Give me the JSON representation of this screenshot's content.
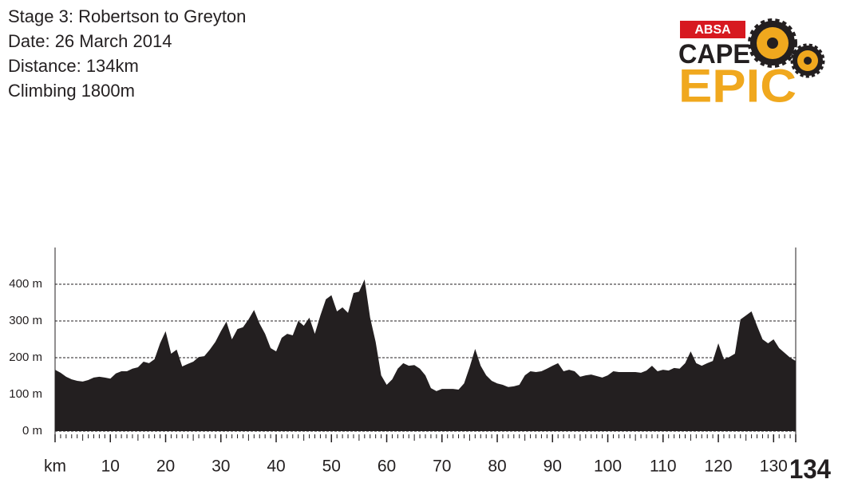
{
  "header": {
    "lines": [
      "Stage 3: Robertson to Greyton",
      "Date: 26 March 2014",
      "Distance: 134km",
      "Climbing 1800m"
    ]
  },
  "logo": {
    "bank": "ABSA",
    "top": "CAPE",
    "bottom": "EPIC"
  },
  "chart_data": {
    "type": "area",
    "color": "#231f20",
    "x": [
      0,
      1,
      2,
      3,
      4,
      5,
      6,
      7,
      8,
      9,
      10,
      11,
      12,
      13,
      14,
      15,
      16,
      17,
      18,
      19,
      20,
      21,
      22,
      23,
      24,
      25,
      26,
      27,
      28,
      29,
      30,
      31,
      32,
      33,
      34,
      35,
      36,
      37,
      38,
      39,
      40,
      41,
      42,
      43,
      44,
      45,
      46,
      47,
      48,
      49,
      50,
      51,
      52,
      53,
      54,
      55,
      56,
      57,
      58,
      59,
      60,
      61,
      62,
      63,
      64,
      65,
      66,
      67,
      68,
      69,
      70,
      71,
      72,
      73,
      74,
      75,
      76,
      77,
      78,
      79,
      80,
      81,
      82,
      83,
      84,
      85,
      86,
      87,
      88,
      89,
      90,
      91,
      92,
      93,
      94,
      95,
      96,
      97,
      98,
      99,
      100,
      101,
      102,
      103,
      104,
      105,
      106,
      107,
      108,
      109,
      110,
      111,
      112,
      113,
      114,
      115,
      116,
      117,
      118,
      119,
      120,
      121,
      122,
      123,
      124,
      125,
      126,
      127,
      128,
      129,
      130,
      131,
      132,
      133,
      134
    ],
    "values": [
      167,
      159,
      148,
      141,
      137,
      135,
      139,
      146,
      148,
      146,
      143,
      157,
      163,
      163,
      170,
      174,
      189,
      185,
      196,
      239,
      272,
      211,
      222,
      176,
      183,
      189,
      202,
      204,
      222,
      243,
      272,
      298,
      250,
      278,
      283,
      304,
      330,
      293,
      265,
      226,
      217,
      254,
      265,
      261,
      300,
      287,
      309,
      265,
      315,
      359,
      370,
      326,
      337,
      322,
      376,
      380,
      413,
      309,
      243,
      152,
      126,
      141,
      170,
      185,
      178,
      180,
      170,
      152,
      117,
      109,
      115,
      115,
      115,
      113,
      130,
      174,
      224,
      178,
      152,
      137,
      130,
      126,
      120,
      122,
      126,
      152,
      163,
      161,
      163,
      170,
      178,
      185,
      163,
      167,
      163,
      148,
      152,
      154,
      150,
      146,
      152,
      163,
      161,
      161,
      161,
      161,
      159,
      165,
      178,
      163,
      167,
      165,
      172,
      170,
      185,
      217,
      185,
      178,
      185,
      191,
      239,
      196,
      202,
      211,
      304,
      315,
      326,
      287,
      250,
      239,
      250,
      226,
      213,
      200,
      191
    ],
    "xlim": [
      0,
      134
    ],
    "ylim": [
      0,
      500
    ],
    "xticks": [
      {
        "value": 0,
        "label": "km"
      },
      10,
      20,
      30,
      40,
      50,
      60,
      70,
      80,
      90,
      100,
      110,
      120,
      130,
      134
    ],
    "xminorticks": [
      0,
      1,
      2,
      3,
      4,
      5,
      6,
      7,
      8,
      9,
      10,
      11,
      12,
      13,
      14,
      15,
      16,
      17,
      18,
      19,
      20,
      21,
      22,
      23,
      24,
      25,
      26,
      27,
      28,
      29,
      30,
      31,
      32,
      33,
      34,
      35,
      36,
      37,
      38,
      39,
      40,
      41,
      42,
      43,
      44,
      45,
      46,
      47,
      48,
      49,
      50,
      51,
      52,
      53,
      54,
      55,
      56,
      57,
      58,
      59,
      60,
      61,
      62,
      63,
      64,
      65,
      66,
      67,
      68,
      69,
      70,
      71,
      72,
      73,
      74,
      75,
      76,
      77,
      78,
      79,
      80,
      81,
      82,
      83,
      84,
      85,
      86,
      87,
      88,
      89,
      90,
      91,
      92,
      93,
      94,
      95,
      96,
      97,
      98,
      99,
      100,
      101,
      102,
      103,
      104,
      105,
      106,
      107,
      108,
      109,
      110,
      111,
      112,
      113,
      114,
      115,
      116,
      117,
      118,
      119,
      120,
      121,
      122,
      123,
      124,
      125,
      126,
      127,
      128,
      129,
      130,
      131,
      132,
      133,
      134
    ],
    "yticks": [
      {
        "value": 0,
        "label": "0 m"
      },
      {
        "value": 100,
        "label": "100 m"
      },
      {
        "value": 200,
        "label": "200 m"
      },
      {
        "value": 300,
        "label": "300 m"
      },
      {
        "value": 400,
        "label": "400 m"
      }
    ],
    "grid": true
  }
}
